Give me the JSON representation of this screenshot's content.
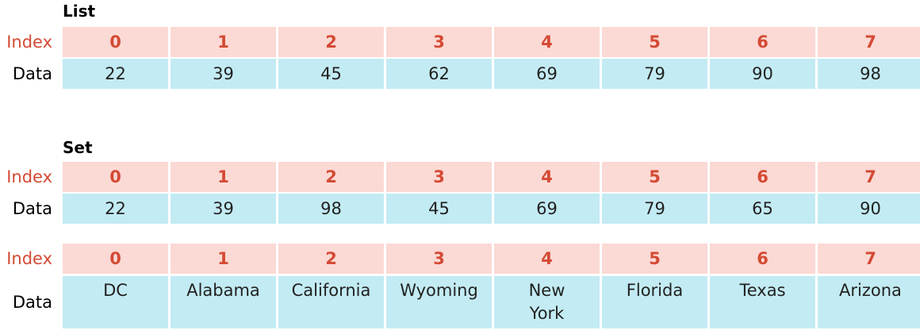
{
  "labels": {
    "index": "Index",
    "data": "Data"
  },
  "list": {
    "title": "List",
    "indices": [
      "0",
      "1",
      "2",
      "3",
      "4",
      "5",
      "6",
      "7"
    ],
    "values": [
      "22",
      "39",
      "45",
      "62",
      "69",
      "79",
      "90",
      "98"
    ]
  },
  "set": {
    "title": "Set",
    "indices": [
      "0",
      "1",
      "2",
      "3",
      "4",
      "5",
      "6",
      "7"
    ],
    "values": [
      "22",
      "39",
      "98",
      "45",
      "69",
      "79",
      "65",
      "90"
    ]
  },
  "states": {
    "indices": [
      "0",
      "1",
      "2",
      "3",
      "4",
      "5",
      "6",
      "7"
    ],
    "values": [
      "DC",
      "Alabama",
      "California",
      "Wyoming",
      "New York",
      "Florida",
      "Texas",
      "Arizona"
    ]
  },
  "colors": {
    "index_bg": "#fbd9d4",
    "index_text": "#d44a34",
    "data_bg": "#c3ebf3"
  }
}
